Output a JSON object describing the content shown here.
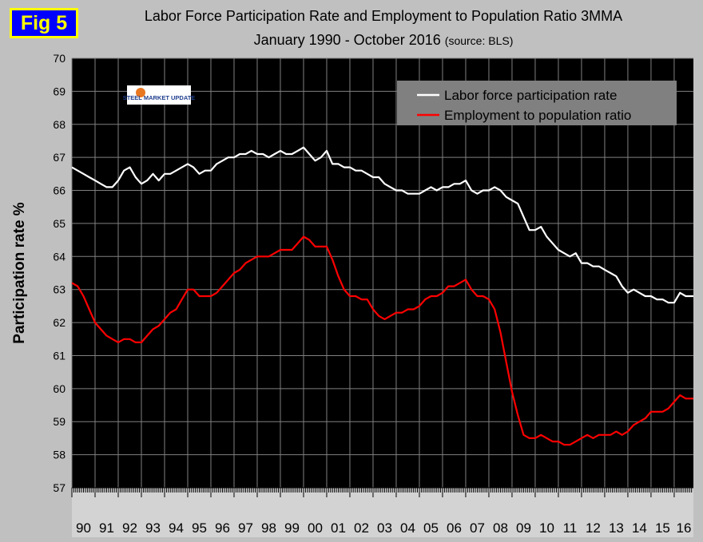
{
  "badge": "Fig 5",
  "title_line1": "Labor Force Participation Rate and Employment to Population Ratio 3MMA",
  "title_line2_main": "January 1990 - October 2016",
  "title_line2_source": "(source: BLS)",
  "logo_text": "STEEL MARKET UPDATE",
  "colors": {
    "background": "#c0c0c0",
    "plot_background": "#000000",
    "grid": "#808080",
    "lfpr": "#ffffff",
    "epop": "#ff0000",
    "legend_background": "#808080",
    "badge_background": "#0000ff",
    "badge_text": "#ffff00"
  },
  "chart_data": {
    "type": "line",
    "title": "Labor Force Participation Rate and Employment to Population Ratio 3MMA",
    "subtitle": "January 1990 - October 2016 (source: BLS)",
    "xlabel": "",
    "ylabel": "Participation rate %",
    "ylim": [
      57,
      70
    ],
    "yticks": [
      "57",
      "58",
      "59",
      "60",
      "61",
      "62",
      "63",
      "64",
      "65",
      "66",
      "67",
      "68",
      "69",
      "70"
    ],
    "xlim": [
      1990.0,
      2016.83
    ],
    "categories": [
      "90",
      "91",
      "92",
      "93",
      "94",
      "95",
      "96",
      "97",
      "98",
      "99",
      "00",
      "01",
      "02",
      "03",
      "04",
      "05",
      "06",
      "07",
      "08",
      "09",
      "10",
      "11",
      "12",
      "13",
      "14",
      "15",
      "16"
    ],
    "grid": true,
    "legend_position": "top-right",
    "series": [
      {
        "name": "Labor force participation rate",
        "color": "#ffffff",
        "x": [
          1990.0,
          1990.25,
          1990.5,
          1990.75,
          1991.0,
          1991.25,
          1991.5,
          1991.75,
          1992.0,
          1992.25,
          1992.5,
          1992.75,
          1993.0,
          1993.25,
          1993.5,
          1993.75,
          1994.0,
          1994.25,
          1994.5,
          1994.75,
          1995.0,
          1995.25,
          1995.5,
          1995.75,
          1996.0,
          1996.25,
          1996.5,
          1996.75,
          1997.0,
          1997.25,
          1997.5,
          1997.75,
          1998.0,
          1998.25,
          1998.5,
          1998.75,
          1999.0,
          1999.25,
          1999.5,
          1999.75,
          2000.0,
          2000.25,
          2000.5,
          2000.75,
          2001.0,
          2001.25,
          2001.5,
          2001.75,
          2002.0,
          2002.25,
          2002.5,
          2002.75,
          2003.0,
          2003.25,
          2003.5,
          2003.75,
          2004.0,
          2004.25,
          2004.5,
          2004.75,
          2005.0,
          2005.25,
          2005.5,
          2005.75,
          2006.0,
          2006.25,
          2006.5,
          2006.75,
          2007.0,
          2007.25,
          2007.5,
          2007.75,
          2008.0,
          2008.25,
          2008.5,
          2008.75,
          2009.0,
          2009.25,
          2009.5,
          2009.75,
          2010.0,
          2010.25,
          2010.5,
          2010.75,
          2011.0,
          2011.25,
          2011.5,
          2011.75,
          2012.0,
          2012.25,
          2012.5,
          2012.75,
          2013.0,
          2013.25,
          2013.5,
          2013.75,
          2014.0,
          2014.25,
          2014.5,
          2014.75,
          2015.0,
          2015.25,
          2015.5,
          2015.75,
          2016.0,
          2016.25,
          2016.5,
          2016.83
        ],
        "values": [
          66.7,
          66.6,
          66.5,
          66.4,
          66.3,
          66.2,
          66.1,
          66.1,
          66.3,
          66.6,
          66.7,
          66.4,
          66.2,
          66.3,
          66.5,
          66.3,
          66.5,
          66.5,
          66.6,
          66.7,
          66.8,
          66.7,
          66.5,
          66.6,
          66.6,
          66.8,
          66.9,
          67.0,
          67.0,
          67.1,
          67.1,
          67.2,
          67.1,
          67.1,
          67.0,
          67.1,
          67.2,
          67.1,
          67.1,
          67.2,
          67.3,
          67.1,
          66.9,
          67.0,
          67.2,
          66.8,
          66.8,
          66.7,
          66.7,
          66.6,
          66.6,
          66.5,
          66.4,
          66.4,
          66.2,
          66.1,
          66.0,
          66.0,
          65.9,
          65.9,
          65.9,
          66.0,
          66.1,
          66.0,
          66.1,
          66.1,
          66.2,
          66.2,
          66.3,
          66.0,
          65.9,
          66.0,
          66.0,
          66.1,
          66.0,
          65.8,
          65.7,
          65.6,
          65.2,
          64.8,
          64.8,
          64.9,
          64.6,
          64.4,
          64.2,
          64.1,
          64.0,
          64.1,
          63.8,
          63.8,
          63.7,
          63.7,
          63.6,
          63.5,
          63.4,
          63.1,
          62.9,
          63.0,
          62.9,
          62.8,
          62.8,
          62.7,
          62.7,
          62.6,
          62.6,
          62.9,
          62.8,
          62.8
        ]
      },
      {
        "name": "Employment to population ratio",
        "color": "#ff0000",
        "x": [
          1990.0,
          1990.25,
          1990.5,
          1990.75,
          1991.0,
          1991.25,
          1991.5,
          1991.75,
          1992.0,
          1992.25,
          1992.5,
          1992.75,
          1993.0,
          1993.25,
          1993.5,
          1993.75,
          1994.0,
          1994.25,
          1994.5,
          1994.75,
          1995.0,
          1995.25,
          1995.5,
          1995.75,
          1996.0,
          1996.25,
          1996.5,
          1996.75,
          1997.0,
          1997.25,
          1997.5,
          1997.75,
          1998.0,
          1998.25,
          1998.5,
          1998.75,
          1999.0,
          1999.25,
          1999.5,
          1999.75,
          2000.0,
          2000.25,
          2000.5,
          2000.75,
          2001.0,
          2001.25,
          2001.5,
          2001.75,
          2002.0,
          2002.25,
          2002.5,
          2002.75,
          2003.0,
          2003.25,
          2003.5,
          2003.75,
          2004.0,
          2004.25,
          2004.5,
          2004.75,
          2005.0,
          2005.25,
          2005.5,
          2005.75,
          2006.0,
          2006.25,
          2006.5,
          2006.75,
          2007.0,
          2007.25,
          2007.5,
          2007.75,
          2008.0,
          2008.25,
          2008.5,
          2008.75,
          2009.0,
          2009.25,
          2009.5,
          2009.75,
          2010.0,
          2010.25,
          2010.5,
          2010.75,
          2011.0,
          2011.25,
          2011.5,
          2011.75,
          2012.0,
          2012.25,
          2012.5,
          2012.75,
          2013.0,
          2013.25,
          2013.5,
          2013.75,
          2014.0,
          2014.25,
          2014.5,
          2014.75,
          2015.0,
          2015.25,
          2015.5,
          2015.75,
          2016.0,
          2016.25,
          2016.5,
          2016.83
        ],
        "values": [
          63.2,
          63.1,
          62.8,
          62.4,
          62.0,
          61.8,
          61.6,
          61.5,
          61.4,
          61.5,
          61.5,
          61.4,
          61.4,
          61.6,
          61.8,
          61.9,
          62.1,
          62.3,
          62.4,
          62.7,
          63.0,
          63.0,
          62.8,
          62.8,
          62.8,
          62.9,
          63.1,
          63.3,
          63.5,
          63.6,
          63.8,
          63.9,
          64.0,
          64.0,
          64.0,
          64.1,
          64.2,
          64.2,
          64.2,
          64.4,
          64.6,
          64.5,
          64.3,
          64.3,
          64.3,
          63.9,
          63.4,
          63.0,
          62.8,
          62.8,
          62.7,
          62.7,
          62.4,
          62.2,
          62.1,
          62.2,
          62.3,
          62.3,
          62.4,
          62.4,
          62.5,
          62.7,
          62.8,
          62.8,
          62.9,
          63.1,
          63.1,
          63.2,
          63.3,
          63.0,
          62.8,
          62.8,
          62.7,
          62.4,
          61.7,
          60.8,
          59.9,
          59.2,
          58.6,
          58.5,
          58.5,
          58.6,
          58.5,
          58.4,
          58.4,
          58.3,
          58.3,
          58.4,
          58.5,
          58.6,
          58.5,
          58.6,
          58.6,
          58.6,
          58.7,
          58.6,
          58.7,
          58.9,
          59.0,
          59.1,
          59.3,
          59.3,
          59.3,
          59.4,
          59.6,
          59.8,
          59.7,
          59.7
        ]
      }
    ]
  }
}
